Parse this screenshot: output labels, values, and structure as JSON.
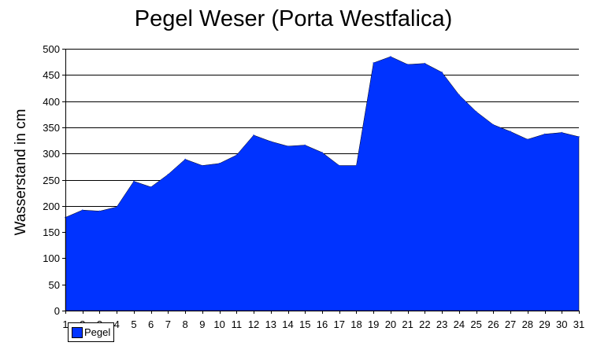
{
  "chart_data": {
    "type": "area",
    "title": "Pegel Weser (Porta Westfalica)",
    "xlabel": "",
    "ylabel": "Wasserstand in cm",
    "x": [
      1,
      2,
      3,
      4,
      5,
      6,
      7,
      8,
      9,
      10,
      11,
      12,
      13,
      14,
      15,
      16,
      17,
      18,
      19,
      20,
      21,
      22,
      23,
      24,
      25,
      26,
      27,
      28,
      29,
      30,
      31
    ],
    "series": [
      {
        "name": "Pegel",
        "color": "#0033ff",
        "values": [
          178,
          192,
          190,
          198,
          247,
          236,
          260,
          289,
          277,
          281,
          297,
          335,
          323,
          314,
          316,
          302,
          277,
          277,
          473,
          485,
          470,
          472,
          455,
          412,
          380,
          355,
          342,
          327,
          337,
          340,
          332
        ]
      }
    ],
    "ylim": [
      0,
      500
    ],
    "yticks": [
      0,
      50,
      100,
      150,
      200,
      250,
      300,
      350,
      400,
      450,
      500
    ],
    "grid": true,
    "legend_position": "bottom-left"
  }
}
